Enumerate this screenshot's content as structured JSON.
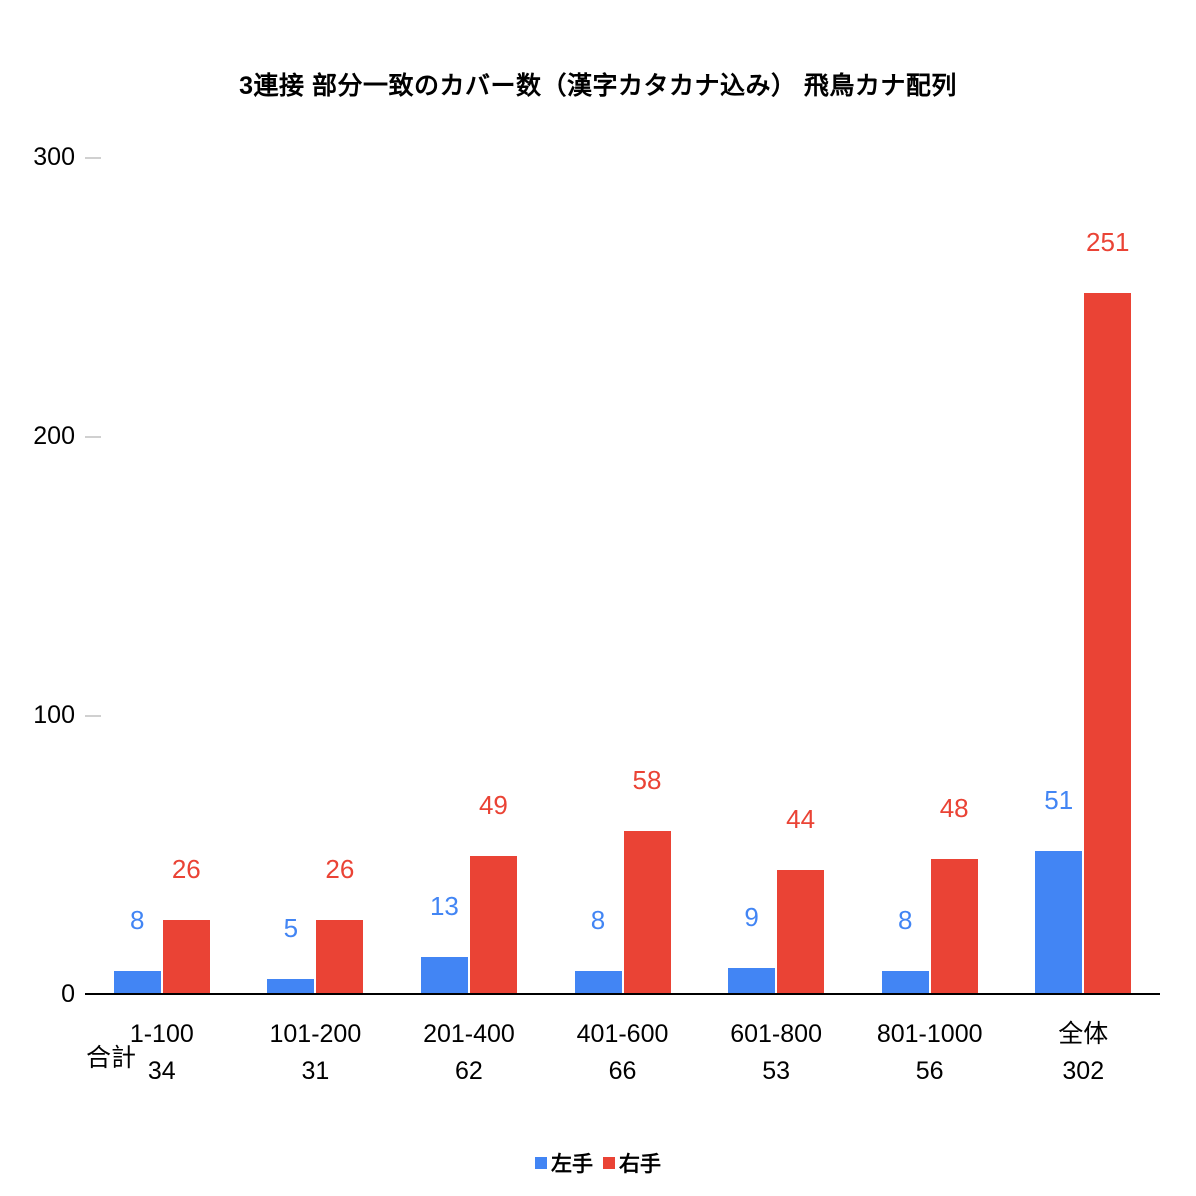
{
  "chart_data": {
    "type": "bar",
    "title": "3連接 部分一致のカバー数（漢字カタカナ込み） 飛鳥カナ配列",
    "categories": [
      "1-100",
      "101-200",
      "201-400",
      "401-600",
      "601-800",
      "801-1000",
      "全体"
    ],
    "series": [
      {
        "key": "left-hand",
        "name": "左手",
        "color": "#4285f4",
        "values": [
          8,
          5,
          13,
          8,
          9,
          8,
          51
        ]
      },
      {
        "key": "right-hand",
        "name": "右手",
        "color": "#ea4335",
        "values": [
          26,
          26,
          49,
          58,
          44,
          48,
          251
        ]
      }
    ],
    "totals_row_label": "合計",
    "totals": [
      34,
      31,
      62,
      66,
      53,
      56,
      302
    ],
    "y_ticks": [
      0,
      100,
      200,
      300
    ],
    "ylim": [
      0,
      300
    ],
    "xlabel": "",
    "ylabel": "",
    "grid": false,
    "legend_position": "bottom"
  }
}
